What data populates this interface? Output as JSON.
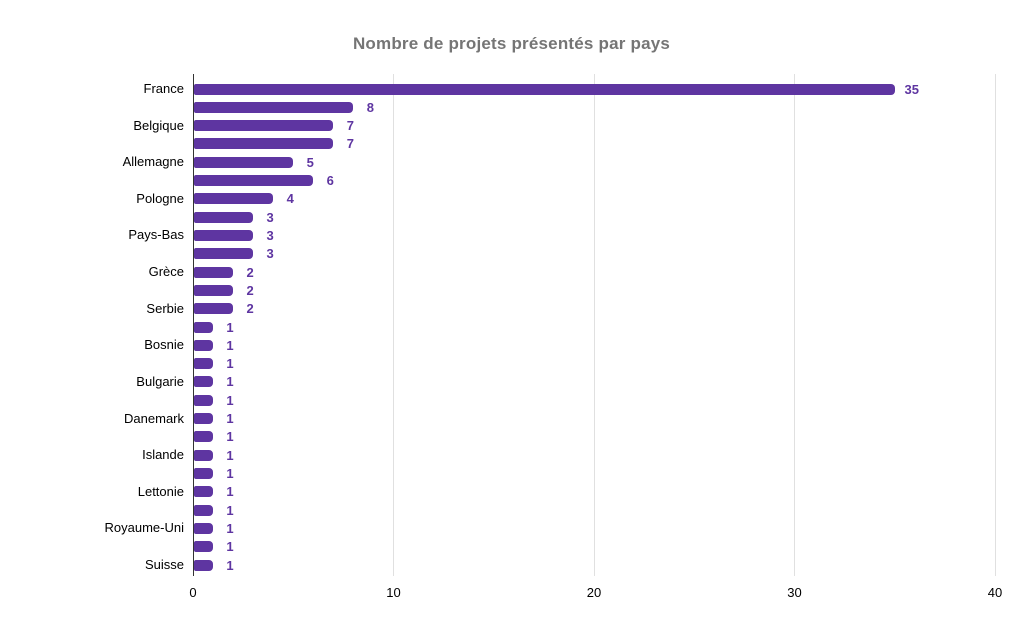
{
  "title": "Nombre de projets présentés par pays",
  "colors": {
    "background": "#ffffff",
    "bar": "#5e35a1",
    "value_label": "#5e35a1",
    "title": "#757575",
    "category_label": "#000000",
    "tick_label": "#000000",
    "gridline": "#e0e0e0",
    "axis_line": "#333333"
  },
  "chart_data": {
    "type": "bar",
    "orientation": "horizontal",
    "title": "Nombre de projets présentés par pays",
    "categories": [
      "France",
      "",
      "Belgique",
      "",
      "Allemagne",
      "",
      "Pologne",
      "",
      "Pays-Bas",
      "",
      "Grèce",
      "",
      "Serbie",
      "",
      "Bosnie",
      "",
      "Bulgarie",
      "",
      "Danemark",
      "",
      "Islande",
      "",
      "Lettonie",
      "",
      "Royaume-Uni",
      "",
      "Suisse"
    ],
    "values": [
      35,
      8,
      7,
      7,
      5,
      6,
      4,
      3,
      3,
      3,
      2,
      2,
      2,
      1,
      1,
      1,
      1,
      1,
      1,
      1,
      1,
      1,
      1,
      1,
      1,
      1,
      1
    ],
    "x_ticks": [
      0,
      10,
      20,
      30,
      40
    ],
    "xlim": [
      0,
      40
    ],
    "grid": true,
    "legend": "none",
    "data_labels": true
  }
}
